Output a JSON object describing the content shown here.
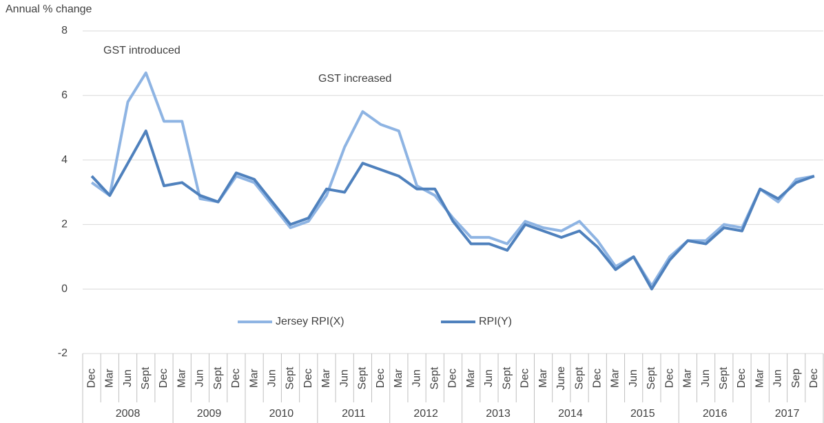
{
  "chart_data": {
    "type": "line",
    "y_axis_title": "Annual % change",
    "annotations": [
      {
        "text": "GST introduced"
      },
      {
        "text": "GST increased"
      }
    ],
    "category_groups": [
      {
        "label": "2008",
        "categories": [
          "Dec",
          "Mar",
          "Jun",
          "Sept",
          "Dec"
        ]
      },
      {
        "label": "2009",
        "categories": [
          "Mar",
          "Jun",
          "Sept",
          "Dec"
        ]
      },
      {
        "label": "2010",
        "categories": [
          "Mar",
          "Jun",
          "Sept",
          "Dec"
        ]
      },
      {
        "label": "2011",
        "categories": [
          "Mar",
          "Jun",
          "Sept",
          "Dec"
        ]
      },
      {
        "label": "2012",
        "categories": [
          "Mar",
          "Jun",
          "Sept",
          "Dec"
        ]
      },
      {
        "label": "2013",
        "categories": [
          "Mar",
          "Jun",
          "Sept",
          "Dec"
        ]
      },
      {
        "label": "2014",
        "categories": [
          "Mar",
          "June",
          "Sept",
          "Dec"
        ]
      },
      {
        "label": "2015",
        "categories": [
          "Mar",
          "Jun",
          "Sept",
          "Dec"
        ]
      },
      {
        "label": "2016",
        "categories": [
          "Mar",
          "Jun",
          "Sept",
          "Dec"
        ]
      },
      {
        "label": "2017",
        "categories": [
          "Mar",
          "Jun",
          "Sep",
          "Dec"
        ]
      }
    ],
    "series": [
      {
        "name": "Jersey RPI(X)",
        "color": "#8eb4e3",
        "values": [
          3.3,
          2.9,
          5.8,
          6.7,
          5.2,
          5.2,
          2.8,
          2.7,
          3.5,
          3.3,
          2.6,
          1.9,
          2.1,
          2.9,
          4.4,
          5.5,
          5.1,
          4.9,
          3.2,
          2.9,
          2.2,
          1.6,
          1.6,
          1.4,
          2.1,
          1.9,
          1.8,
          2.1,
          1.5,
          0.7,
          1.0,
          0.1,
          1.0,
          1.5,
          1.5,
          2.0,
          1.9,
          3.1,
          2.7,
          3.4,
          3.5
        ]
      },
      {
        "name": "RPI(Y)",
        "color": "#4f81bd",
        "values": [
          3.5,
          2.9,
          3.9,
          4.9,
          3.2,
          3.3,
          2.9,
          2.7,
          3.6,
          3.4,
          2.7,
          2.0,
          2.2,
          3.1,
          3.0,
          3.9,
          3.7,
          3.5,
          3.1,
          3.1,
          2.1,
          1.4,
          1.4,
          1.2,
          2.0,
          1.8,
          1.6,
          1.8,
          1.3,
          0.6,
          1.0,
          0.0,
          0.9,
          1.5,
          1.4,
          1.9,
          1.8,
          3.1,
          2.8,
          3.3,
          3.5
        ]
      }
    ],
    "ylim": [
      -2,
      8
    ],
    "yticks": [
      -2,
      0,
      2,
      4,
      6,
      8
    ],
    "grid": true
  }
}
